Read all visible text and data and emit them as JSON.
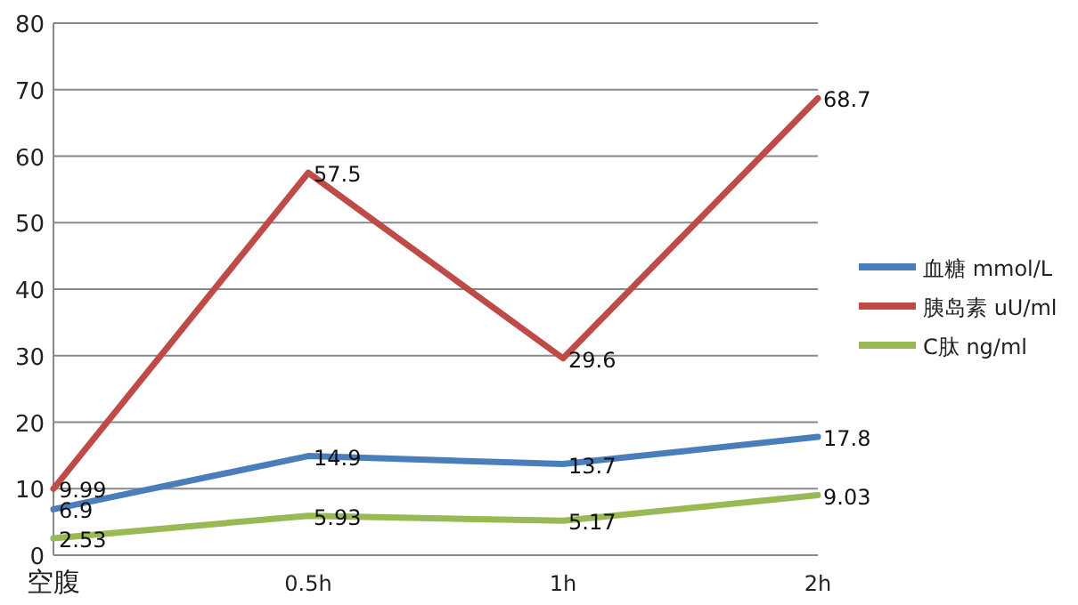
{
  "chart_data": {
    "type": "line",
    "categories": [
      "空腹",
      "0.5h",
      "1h",
      "2h"
    ],
    "series": [
      {
        "name": "血糖 mmol/L",
        "color": "#4a7ebb",
        "values": [
          6.9,
          14.9,
          13.7,
          17.8
        ]
      },
      {
        "name": "胰岛素 uU/ml",
        "color": "#be4b48",
        "values": [
          9.99,
          57.5,
          29.6,
          68.7
        ]
      },
      {
        "name": "C肽 ng/ml",
        "color": "#98b954",
        "values": [
          2.53,
          5.93,
          5.17,
          9.03
        ]
      }
    ],
    "ylim": [
      0,
      80
    ],
    "yticks": [
      0,
      10,
      20,
      30,
      40,
      50,
      60,
      70,
      80
    ],
    "grid": "y",
    "legend": "right",
    "data_labels": true,
    "marker": "none",
    "line_style": "solid"
  }
}
